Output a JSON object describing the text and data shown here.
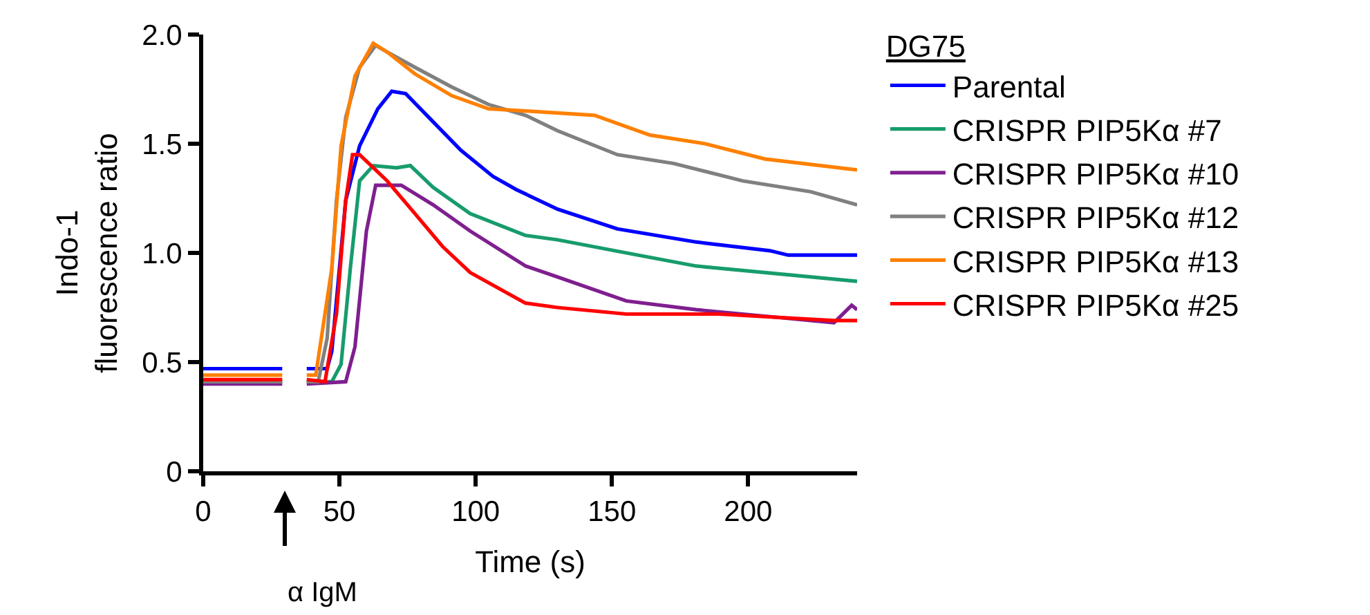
{
  "chart_data": {
    "type": "line",
    "xlabel": "Time (s)",
    "ylabel": "Indo-1\nfluorescence ratio",
    "legend_title": "DG75",
    "legend": "top right",
    "grid": false,
    "marker": "none",
    "line_style": "solid",
    "xlim": [
      0,
      240
    ],
    "xticks": [
      0,
      50,
      100,
      150,
      200
    ],
    "ylim": [
      0,
      2
    ],
    "yticks": [
      0,
      0.5,
      {
        "value": 1,
        "label": "1.0"
      },
      1.5,
      {
        "value": 2,
        "label": "2.0"
      }
    ],
    "annotations": [
      "α IgM"
    ],
    "series": [
      {
        "name": "Parental",
        "color": "#0000ff",
        "x": [
          0,
          29,
          33,
          38,
          45.5,
          47.2,
          52.3,
          57.4,
          64.1,
          69.2,
          74.3,
          84.4,
          94.6,
          106.4,
          114.9,
          130.1,
          152,
          180.9,
          208,
          214.7,
          240
        ],
        "values": [
          0.47,
          0.47,
          null,
          0.47,
          0.47,
          0.55,
          1.24,
          1.49,
          1.66,
          1.74,
          1.73,
          1.6,
          1.47,
          1.35,
          1.29,
          1.2,
          1.11,
          1.05,
          1.01,
          0.99,
          0.99
        ]
      },
      {
        "name": "CRISPR PIP5Kα #7",
        "color": "#179c6c",
        "x": [
          0,
          29,
          33,
          38,
          47.2,
          50.6,
          54,
          57.4,
          62.4,
          71,
          76,
          84.4,
          98,
          118.3,
          130,
          155.3,
          180.9,
          214.7,
          240
        ],
        "values": [
          0.41,
          0.41,
          null,
          0.41,
          0.41,
          0.49,
          0.93,
          1.33,
          1.4,
          1.39,
          1.4,
          1.3,
          1.18,
          1.08,
          1.06,
          1.0,
          0.94,
          0.9,
          0.87
        ]
      },
      {
        "name": "CRISPR PIP5Kα #10",
        "color": "#7f1f8f",
        "x": [
          0,
          29,
          33,
          38,
          52.3,
          55.7,
          59.9,
          63.3,
          72.7,
          84.4,
          98,
          118.3,
          130,
          155.3,
          180.9,
          198,
          231.5,
          238,
          240
        ],
        "values": [
          0.4,
          0.4,
          null,
          0.4,
          0.41,
          0.57,
          1.1,
          1.31,
          1.31,
          1.22,
          1.1,
          0.94,
          0.89,
          0.78,
          0.74,
          0.72,
          0.68,
          0.76,
          0.74
        ]
      },
      {
        "name": "CRISPR PIP5Kα #12",
        "color": "#808080",
        "x": [
          0,
          29,
          33,
          38,
          42.2,
          45.5,
          48.9,
          52.3,
          57.4,
          63.3,
          67.5,
          77.7,
          91.2,
          104.7,
          118.3,
          130,
          152,
          172.6,
          198,
          223,
          240
        ],
        "values": [
          0.41,
          0.41,
          null,
          0.41,
          0.41,
          0.61,
          1.24,
          1.62,
          1.85,
          1.95,
          1.92,
          1.85,
          1.76,
          1.68,
          1.63,
          1.56,
          1.45,
          1.41,
          1.33,
          1.28,
          1.22
        ]
      },
      {
        "name": "CRISPR PIP5Kα #13",
        "color": "#ff8000",
        "x": [
          0,
          29,
          33,
          38,
          41.3,
          47.2,
          50.6,
          55.7,
          62.4,
          67.5,
          77.7,
          91.2,
          104.7,
          118.3,
          143.6,
          163.9,
          184.2,
          206.2,
          240
        ],
        "values": [
          0.44,
          0.44,
          null,
          0.44,
          0.44,
          0.93,
          1.49,
          1.81,
          1.96,
          1.92,
          1.82,
          1.72,
          1.66,
          1.65,
          1.63,
          1.54,
          1.5,
          1.43,
          1.38
        ]
      },
      {
        "name": "CRISPR PIP5Kα #25",
        "color": "#ff0000",
        "x": [
          0,
          29,
          33,
          38,
          44.7,
          48.9,
          52.3,
          54.8,
          57.4,
          67.5,
          77.7,
          87.8,
          98,
          118.3,
          130,
          155.3,
          189.3,
          231.5,
          240
        ],
        "values": [
          0.42,
          0.42,
          null,
          0.42,
          0.41,
          0.72,
          1.24,
          1.45,
          1.45,
          1.33,
          1.18,
          1.03,
          0.91,
          0.77,
          0.75,
          0.72,
          0.72,
          0.69,
          0.69
        ]
      }
    ]
  }
}
